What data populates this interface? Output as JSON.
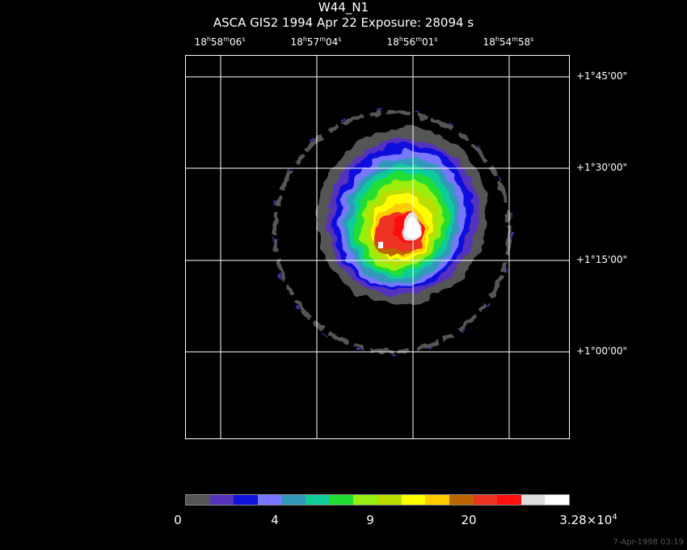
{
  "header": {
    "line1": "W44_N1",
    "line2": "ASCA GIS2    1994 Apr 22    Exposure: 28094 s"
  },
  "ra_labels": [
    {
      "h": "18",
      "m": "58",
      "s": "06"
    },
    {
      "h": "18",
      "m": "57",
      "s": "04"
    },
    {
      "h": "18",
      "m": "56",
      "s": "01"
    },
    {
      "h": "18",
      "m": "54",
      "s": "58"
    }
  ],
  "ra_units": {
    "h": "h",
    "m": "m",
    "s": "s"
  },
  "dec_labels": [
    "+1°45'00\"",
    "+1°30'00\"",
    "+1°15'00\"",
    "+1°00'00\""
  ],
  "colorbar": {
    "colors": [
      "#555555",
      "#5533bb",
      "#1111dd",
      "#7777ff",
      "#3399bb",
      "#11cc99",
      "#22dd33",
      "#99ee11",
      "#bbdd00",
      "#ffff00",
      "#ffcc00",
      "#bb6600",
      "#ee3322",
      "#ff1111",
      "#dddddd",
      "#ffffff"
    ],
    "labels": [
      "0",
      "4",
      "9",
      "20"
    ],
    "max_label_base": "3.28×10",
    "max_label_exp": "4"
  },
  "timestamp": "7-Apr-1998 03:19"
}
